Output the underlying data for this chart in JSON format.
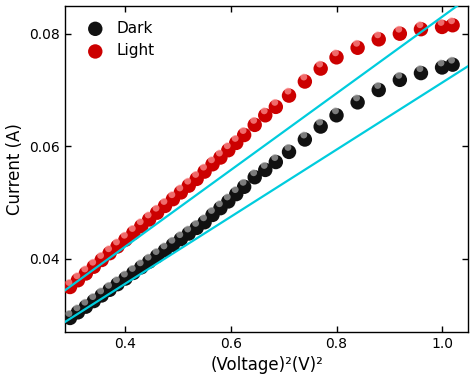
{
  "xlabel": "(Voltage)²(V)²",
  "ylabel": "Current (A)",
  "xlim": [
    0.285,
    1.05
  ],
  "ylim": [
    0.027,
    0.085
  ],
  "xticks": [
    0.4,
    0.6,
    0.8,
    1.0
  ],
  "yticks": [
    0.04,
    0.06,
    0.08
  ],
  "dark_x": [
    0.295,
    0.31,
    0.325,
    0.34,
    0.355,
    0.37,
    0.385,
    0.4,
    0.415,
    0.43,
    0.445,
    0.46,
    0.475,
    0.49,
    0.505,
    0.52,
    0.535,
    0.55,
    0.565,
    0.58,
    0.595,
    0.61,
    0.625,
    0.645,
    0.665,
    0.685,
    0.71,
    0.74,
    0.77,
    0.8,
    0.84,
    0.88,
    0.92,
    0.96,
    1.0,
    1.02
  ],
  "dark_y": [
    0.0295,
    0.0305,
    0.0315,
    0.0325,
    0.0335,
    0.0345,
    0.0355,
    0.0365,
    0.0375,
    0.0385,
    0.0395,
    0.0405,
    0.0415,
    0.0425,
    0.0435,
    0.0445,
    0.0455,
    0.0465,
    0.0478,
    0.049,
    0.0502,
    0.0515,
    0.0528,
    0.0545,
    0.0558,
    0.0572,
    0.059,
    0.0612,
    0.0635,
    0.0655,
    0.0678,
    0.07,
    0.0718,
    0.073,
    0.074,
    0.0745
  ],
  "light_x": [
    0.295,
    0.31,
    0.325,
    0.34,
    0.355,
    0.37,
    0.385,
    0.4,
    0.415,
    0.43,
    0.445,
    0.46,
    0.475,
    0.49,
    0.505,
    0.52,
    0.535,
    0.55,
    0.565,
    0.58,
    0.595,
    0.61,
    0.625,
    0.645,
    0.665,
    0.685,
    0.71,
    0.74,
    0.77,
    0.8,
    0.84,
    0.88,
    0.92,
    0.96,
    1.0,
    1.02
  ],
  "light_y": [
    0.035,
    0.0362,
    0.0374,
    0.0386,
    0.0398,
    0.041,
    0.0422,
    0.0434,
    0.0446,
    0.0458,
    0.047,
    0.0482,
    0.0494,
    0.0506,
    0.0518,
    0.053,
    0.0542,
    0.0555,
    0.0568,
    0.058,
    0.0593,
    0.0606,
    0.062,
    0.0638,
    0.0655,
    0.067,
    0.069,
    0.0715,
    0.0738,
    0.0758,
    0.0775,
    0.079,
    0.08,
    0.0808,
    0.0812,
    0.0815
  ],
  "dark_color": "#111111",
  "dark_highlight": "#aaaaaa",
  "light_color": "#cc0000",
  "light_highlight": "#ff9999",
  "fit_color": "#00ccdd",
  "dark_fit_slope": 0.0595,
  "dark_fit_intercept": 0.0118,
  "light_fit_slope": 0.068,
  "light_fit_intercept": 0.015,
  "marker_size": 7,
  "fit_linewidth": 1.6,
  "legend_fontsize": 11,
  "axis_label_fontsize": 12,
  "tick_labelsize": 10,
  "figsize": [
    4.74,
    3.8
  ],
  "dpi": 100
}
